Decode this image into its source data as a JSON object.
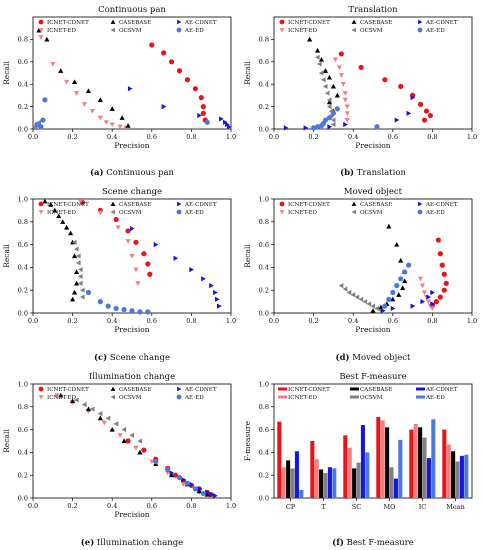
{
  "colors": {
    "icnet_cdnet": "#e8141a",
    "icnet_ed": "#f08080",
    "casebase": "#000000",
    "ocsvm": "#808080",
    "ae_cdnet": "#1414e6",
    "ae_ed": "#4b78dc"
  },
  "chart_data": [
    {
      "type": "scatter",
      "title": "Continuous pan",
      "caption_letter": "(a)",
      "caption_text": "Continuous pan",
      "xlabel": "Precision",
      "ylabel": "Recall",
      "xlim": [
        0,
        1
      ],
      "ylim": [
        0,
        1
      ],
      "x_ticks": [
        "0.0",
        "0.2",
        "0.4",
        "0.6",
        "0.8",
        "1.0"
      ],
      "y_ticks": [
        "0.0",
        "0.2",
        "0.4",
        "0.6",
        "0.8"
      ],
      "legend": "top",
      "series": [
        {
          "name": "ICNET-CDNET",
          "marker": "circle",
          "color_key": "icnet_cdnet",
          "x": [
            0.6,
            0.66,
            0.7,
            0.74,
            0.78,
            0.82,
            0.85,
            0.86,
            0.86,
            0.87
          ],
          "y": [
            0.75,
            0.68,
            0.6,
            0.52,
            0.44,
            0.36,
            0.28,
            0.2,
            0.14,
            0.08
          ]
        },
        {
          "name": "ICNET-ED",
          "marker": "triangle-down",
          "color_key": "icnet_ed",
          "x": [
            0.04,
            0.1,
            0.17,
            0.22,
            0.26,
            0.3,
            0.34,
            0.37,
            0.4,
            0.44,
            0.47
          ],
          "y": [
            0.82,
            0.58,
            0.42,
            0.32,
            0.22,
            0.16,
            0.1,
            0.06,
            0.04,
            0.02,
            0.01
          ]
        },
        {
          "name": "CASEBASE",
          "marker": "triangle-up",
          "color_key": "casebase",
          "x": [
            0.03,
            0.07,
            0.14,
            0.21,
            0.28,
            0.34,
            0.4,
            0.45,
            0.48
          ],
          "y": [
            0.88,
            0.8,
            0.52,
            0.42,
            0.34,
            0.26,
            0.18,
            0.1,
            0.03
          ]
        },
        {
          "name": "OCSVM",
          "marker": "triangle-left",
          "color_key": "ocsvm",
          "x": [
            0.01,
            0.01,
            0.02,
            0.02,
            0.03,
            0.03
          ],
          "y": [
            0.01,
            0.02,
            0.03,
            0.04,
            0.05,
            0.06
          ]
        },
        {
          "name": "AE-CDNET",
          "marker": "triangle-right",
          "color_key": "ae_cdnet",
          "x": [
            0.49,
            0.66,
            0.84,
            0.95,
            0.97,
            0.98,
            0.99
          ],
          "y": [
            0.36,
            0.2,
            0.12,
            0.09,
            0.06,
            0.04,
            0.02
          ]
        },
        {
          "name": "AE-ED",
          "marker": "circle",
          "color_key": "ae_ed",
          "x": [
            0.02,
            0.04,
            0.05,
            0.06,
            0.88
          ],
          "y": [
            0.04,
            0.02,
            0.08,
            0.26,
            0.06
          ]
        }
      ]
    },
    {
      "type": "scatter",
      "title": "Translation",
      "caption_letter": "(b)",
      "caption_text": "Translation",
      "xlabel": "Precision",
      "ylabel": "Recall",
      "xlim": [
        0,
        1
      ],
      "ylim": [
        0,
        1
      ],
      "x_ticks": [
        "0.0",
        "0.2",
        "0.4",
        "0.6",
        "0.8",
        "1.0"
      ],
      "y_ticks": [
        "0.0",
        "0.2",
        "0.4",
        "0.6",
        "0.8"
      ],
      "legend": "top",
      "series": [
        {
          "name": "ICNET-CDNET",
          "marker": "circle",
          "color_key": "icnet_cdnet",
          "x": [
            0.34,
            0.44,
            0.56,
            0.64,
            0.7,
            0.74,
            0.77,
            0.79,
            0.76
          ],
          "y": [
            0.67,
            0.55,
            0.44,
            0.38,
            0.3,
            0.22,
            0.16,
            0.12,
            0.08
          ]
        },
        {
          "name": "ICNET-ED",
          "marker": "triangle-down",
          "color_key": "icnet_ed",
          "x": [
            0.31,
            0.33,
            0.34,
            0.35,
            0.36,
            0.36,
            0.37,
            0.37,
            0.37
          ],
          "y": [
            0.62,
            0.55,
            0.48,
            0.4,
            0.32,
            0.26,
            0.2,
            0.14,
            0.08
          ]
        },
        {
          "name": "CASEBASE",
          "marker": "triangle-up",
          "color_key": "casebase",
          "x": [
            0.18,
            0.22,
            0.24,
            0.26,
            0.28,
            0.3,
            0.32,
            0.28,
            0.3
          ],
          "y": [
            0.8,
            0.7,
            0.62,
            0.52,
            0.46,
            0.38,
            0.3,
            0.24,
            0.16
          ]
        },
        {
          "name": "OCSVM",
          "marker": "triangle-left",
          "color_key": "ocsvm",
          "x": [
            0.22,
            0.23,
            0.24,
            0.25,
            0.26,
            0.27,
            0.28,
            0.28,
            0.29,
            0.29,
            0.3,
            0.3
          ],
          "y": [
            0.64,
            0.58,
            0.5,
            0.44,
            0.38,
            0.32,
            0.26,
            0.2,
            0.16,
            0.12,
            0.08,
            0.04
          ]
        },
        {
          "name": "AE-CDNET",
          "marker": "triangle-right",
          "color_key": "ae_cdnet",
          "x": [
            0.06,
            0.16,
            0.28,
            0.36,
            0.62,
            0.68,
            0.7
          ],
          "y": [
            0.01,
            0.01,
            0.02,
            0.04,
            0.08,
            0.14,
            0.28
          ]
        },
        {
          "name": "AE-ED",
          "marker": "circle",
          "color_key": "ae_ed",
          "x": [
            0.2,
            0.22,
            0.24,
            0.25,
            0.26,
            0.28,
            0.3,
            0.32,
            0.52
          ],
          "y": [
            0.01,
            0.02,
            0.03,
            0.05,
            0.08,
            0.1,
            0.14,
            0.18,
            0.02
          ]
        }
      ]
    },
    {
      "type": "scatter",
      "title": "Scene change",
      "caption_letter": "(c)",
      "caption_text": "Scene change",
      "xlabel": "Precision",
      "ylabel": "Recall",
      "xlim": [
        0,
        1
      ],
      "ylim": [
        0,
        1
      ],
      "x_ticks": [
        "0.0",
        "0.2",
        "0.4",
        "0.6",
        "0.8",
        "1.0"
      ],
      "y_ticks": [
        "0.0",
        "0.2",
        "0.4",
        "0.6",
        "0.8",
        "1.0"
      ],
      "legend": "top",
      "series": [
        {
          "name": "ICNET-CDNET",
          "marker": "circle",
          "color_key": "icnet_cdnet",
          "x": [
            0.25,
            0.34,
            0.42,
            0.48,
            0.52,
            0.56,
            0.58,
            0.59
          ],
          "y": [
            0.97,
            0.9,
            0.82,
            0.72,
            0.62,
            0.52,
            0.43,
            0.34
          ]
        },
        {
          "name": "ICNET-ED",
          "marker": "triangle-down",
          "color_key": "icnet_ed",
          "x": [
            0.24,
            0.34,
            0.43,
            0.48,
            0.5,
            0.52,
            0.53
          ],
          "y": [
            0.98,
            0.88,
            0.75,
            0.63,
            0.5,
            0.38,
            0.26
          ]
        },
        {
          "name": "CASEBASE",
          "marker": "triangle-up",
          "color_key": "casebase",
          "x": [
            0.06,
            0.09,
            0.11,
            0.13,
            0.15,
            0.17,
            0.19,
            0.2,
            0.21,
            0.22,
            0.22,
            0.21,
            0.2
          ],
          "y": [
            0.98,
            0.95,
            0.9,
            0.85,
            0.8,
            0.75,
            0.7,
            0.62,
            0.5,
            0.36,
            0.26,
            0.18,
            0.12
          ]
        },
        {
          "name": "OCSVM",
          "marker": "triangle-left",
          "color_key": "ocsvm",
          "x": [
            0.21,
            0.22,
            0.23,
            0.23,
            0.24,
            0.24,
            0.24,
            0.25,
            0.25
          ],
          "y": [
            0.62,
            0.56,
            0.5,
            0.44,
            0.38,
            0.32,
            0.26,
            0.2,
            0.14
          ]
        },
        {
          "name": "AE-CDNET",
          "marker": "triangle-right",
          "color_key": "ae_cdnet",
          "x": [
            0.5,
            0.62,
            0.72,
            0.8,
            0.86,
            0.9,
            0.92,
            0.93,
            0.94
          ],
          "y": [
            0.74,
            0.6,
            0.48,
            0.38,
            0.3,
            0.24,
            0.18,
            0.12,
            0.06
          ]
        },
        {
          "name": "AE-ED",
          "marker": "circle",
          "color_key": "ae_ed",
          "x": [
            0.28,
            0.34,
            0.38,
            0.42,
            0.46,
            0.5,
            0.54,
            0.58
          ],
          "y": [
            0.18,
            0.1,
            0.06,
            0.04,
            0.03,
            0.02,
            0.01,
            0.01
          ]
        }
      ]
    },
    {
      "type": "scatter",
      "title": "Moved object",
      "caption_letter": "(d)",
      "caption_text": "Moved object",
      "xlabel": "Precision",
      "ylabel": "Recall",
      "xlim": [
        0,
        1
      ],
      "ylim": [
        0,
        1
      ],
      "x_ticks": [
        "0.0",
        "0.2",
        "0.4",
        "0.6",
        "0.8",
        "1.0"
      ],
      "y_ticks": [
        "0.0",
        "0.2",
        "0.4",
        "0.6",
        "0.8",
        "1.0"
      ],
      "legend": "top",
      "series": [
        {
          "name": "ICNET-CDNET",
          "marker": "circle",
          "color_key": "icnet_cdnet",
          "x": [
            0.83,
            0.84,
            0.85,
            0.86,
            0.87,
            0.86,
            0.84,
            0.82,
            0.8
          ],
          "y": [
            0.64,
            0.52,
            0.42,
            0.34,
            0.26,
            0.2,
            0.14,
            0.1,
            0.07
          ]
        },
        {
          "name": "ICNET-ED",
          "marker": "triangle-down",
          "color_key": "icnet_ed",
          "x": [
            0.74,
            0.75,
            0.76,
            0.77,
            0.78,
            0.79,
            0.8
          ],
          "y": [
            0.3,
            0.24,
            0.18,
            0.14,
            0.1,
            0.06,
            0.04
          ]
        },
        {
          "name": "CASEBASE",
          "marker": "triangle-up",
          "color_key": "casebase",
          "x": [
            0.58,
            0.62,
            0.64,
            0.66,
            0.66,
            0.65,
            0.63,
            0.6,
            0.57,
            0.54,
            0.5
          ],
          "y": [
            0.76,
            0.6,
            0.46,
            0.36,
            0.28,
            0.22,
            0.16,
            0.12,
            0.08,
            0.05,
            0.02
          ]
        },
        {
          "name": "OCSVM",
          "marker": "triangle-left",
          "color_key": "ocsvm",
          "x": [
            0.34,
            0.36,
            0.38,
            0.4,
            0.42,
            0.44,
            0.46,
            0.48,
            0.5,
            0.52,
            0.54
          ],
          "y": [
            0.24,
            0.21,
            0.18,
            0.16,
            0.14,
            0.12,
            0.1,
            0.08,
            0.06,
            0.04,
            0.02
          ]
        },
        {
          "name": "AE-CDNET",
          "marker": "triangle-right",
          "color_key": "ae_cdnet",
          "x": [
            0.55,
            0.6,
            0.7,
            0.75,
            0.78,
            0.8,
            0.8
          ],
          "y": [
            0.02,
            0.04,
            0.06,
            0.1,
            0.14,
            0.18,
            0.08
          ]
        },
        {
          "name": "AE-ED",
          "marker": "circle",
          "color_key": "ae_ed",
          "x": [
            0.68,
            0.66,
            0.64,
            0.62,
            0.6,
            0.58,
            0.56
          ],
          "y": [
            0.42,
            0.36,
            0.3,
            0.24,
            0.18,
            0.12,
            0.06
          ]
        }
      ]
    },
    {
      "type": "scatter",
      "title": "Illumination change",
      "caption_letter": "(e)",
      "caption_text": "Illumination change",
      "xlabel": "Precision",
      "ylabel": "Recall",
      "xlim": [
        0,
        1
      ],
      "ylim": [
        0,
        1
      ],
      "x_ticks": [
        "0.0",
        "0.2",
        "0.4",
        "0.6",
        "0.8",
        "1.0"
      ],
      "y_ticks": [
        "0.0",
        "0.2",
        "0.4",
        "0.6",
        "0.8",
        "1.0"
      ],
      "legend": "top",
      "series": [
        {
          "name": "ICNET-CDNET",
          "marker": "circle",
          "color_key": "icnet_cdnet",
          "x": [
            0.48,
            0.56,
            0.62,
            0.68,
            0.72,
            0.76,
            0.8,
            0.84,
            0.88,
            0.9
          ],
          "y": [
            0.5,
            0.42,
            0.34,
            0.26,
            0.2,
            0.15,
            0.11,
            0.08,
            0.05,
            0.03
          ]
        },
        {
          "name": "ICNET-ED",
          "marker": "triangle-down",
          "color_key": "icnet_ed",
          "x": [
            0.12,
            0.2,
            0.28,
            0.36,
            0.44,
            0.52,
            0.6,
            0.68,
            0.76,
            0.84
          ],
          "y": [
            0.9,
            0.84,
            0.76,
            0.66,
            0.55,
            0.44,
            0.32,
            0.22,
            0.12,
            0.05
          ]
        },
        {
          "name": "CASEBASE",
          "marker": "triangle-up",
          "color_key": "casebase",
          "x": [
            0.14,
            0.2,
            0.28,
            0.34,
            0.4,
            0.46,
            0.54,
            0.62,
            0.7,
            0.78,
            0.84,
            0.88
          ],
          "y": [
            0.9,
            0.85,
            0.78,
            0.7,
            0.6,
            0.5,
            0.4,
            0.3,
            0.2,
            0.12,
            0.06,
            0.03
          ]
        },
        {
          "name": "OCSVM",
          "marker": "triangle-left",
          "color_key": "ocsvm",
          "x": [
            0.22,
            0.26,
            0.3,
            0.34,
            0.38,
            0.42,
            0.46,
            0.5,
            0.54
          ],
          "y": [
            0.86,
            0.82,
            0.78,
            0.74,
            0.7,
            0.65,
            0.6,
            0.55,
            0.5
          ]
        },
        {
          "name": "AE-CDNET",
          "marker": "triangle-right",
          "color_key": "ae_cdnet",
          "x": [
            0.7,
            0.76,
            0.8,
            0.84,
            0.88,
            0.9,
            0.92
          ],
          "y": [
            0.22,
            0.16,
            0.12,
            0.08,
            0.05,
            0.03,
            0.02
          ]
        },
        {
          "name": "AE-ED",
          "marker": "circle",
          "color_key": "ae_ed",
          "x": [
            0.62,
            0.68,
            0.74,
            0.78,
            0.82,
            0.86
          ],
          "y": [
            0.32,
            0.25,
            0.18,
            0.13,
            0.08,
            0.04
          ]
        }
      ]
    },
    {
      "type": "bar",
      "title": "Best F-measure",
      "caption_letter": "(f)",
      "caption_text": "Best F-measure",
      "xlabel": "",
      "ylabel": "F-measure",
      "ylim": [
        0,
        1
      ],
      "y_ticks": [
        "0.0",
        "0.2",
        "0.4",
        "0.6",
        "0.8",
        "1.0"
      ],
      "legend": "top",
      "categories": [
        "CP",
        "T",
        "SC",
        "MO",
        "IC",
        "Mean"
      ],
      "series": [
        {
          "name": "ICNET-CDNET",
          "color_key": "icnet_cdnet",
          "values": [
            0.67,
            0.5,
            0.55,
            0.71,
            0.6,
            0.6
          ]
        },
        {
          "name": "ICNET-ED",
          "color_key": "icnet_ed",
          "values": [
            0.27,
            0.34,
            0.44,
            0.68,
            0.65,
            0.47
          ]
        },
        {
          "name": "CASEBASE",
          "color_key": "casebase",
          "values": [
            0.33,
            0.25,
            0.26,
            0.62,
            0.62,
            0.41
          ]
        },
        {
          "name": "OCSVM",
          "color_key": "ocsvm",
          "values": [
            0.26,
            0.22,
            0.31,
            0.27,
            0.53,
            0.32
          ]
        },
        {
          "name": "AE-CDNET",
          "color_key": "ae_cdnet",
          "values": [
            0.41,
            0.27,
            0.64,
            0.17,
            0.35,
            0.37
          ]
        },
        {
          "name": "AE-ED",
          "color_key": "ae_ed",
          "values": [
            0.07,
            0.26,
            0.4,
            0.51,
            0.69,
            0.38
          ]
        }
      ]
    }
  ]
}
